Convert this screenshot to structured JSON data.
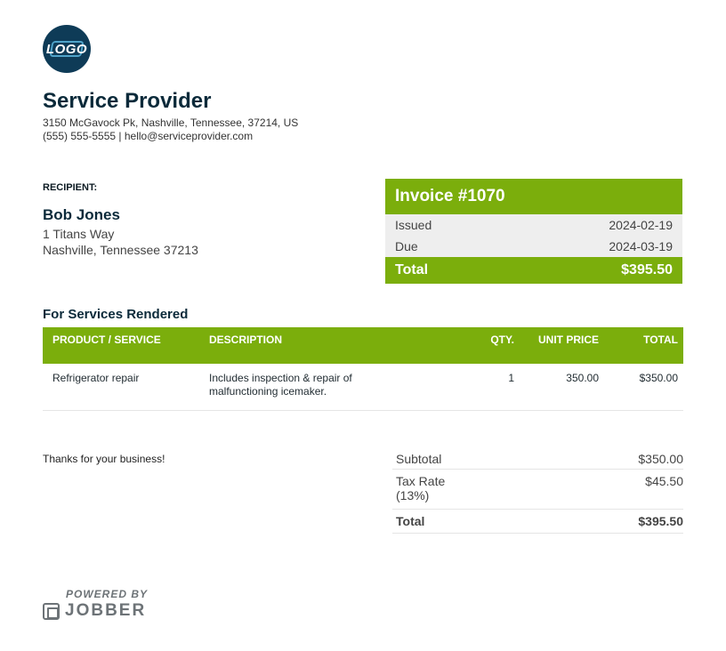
{
  "logo": {
    "text": "LOGO"
  },
  "company": {
    "name": "Service Provider",
    "address": "3150 McGavock Pk, Nashville, Tennessee, 37214, US",
    "contact": "(555) 555-5555 | hello@serviceprovider.com"
  },
  "recipient": {
    "label": "RECIPIENT:",
    "name": "Bob Jones",
    "address_line1": "1 Titans Way",
    "address_line2": "Nashville, Tennessee 37213"
  },
  "invoice": {
    "title": "Invoice #1070",
    "issued_label": "Issued",
    "issued_value": "2024-02-19",
    "due_label": "Due",
    "due_value": "2024-03-19",
    "total_label": "Total",
    "total_value": "$395.50"
  },
  "services": {
    "title": "For Services Rendered",
    "headers": {
      "product": "PRODUCT / SERVICE",
      "description": "DESCRIPTION",
      "qty": "QTY.",
      "unit_price": "UNIT PRICE",
      "total": "TOTAL"
    },
    "items": [
      {
        "product": "Refrigerator repair",
        "description": "Includes inspection & repair of malfunctioning icemaker.",
        "qty": "1",
        "unit_price": "350.00",
        "total": "$350.00"
      }
    ]
  },
  "footer_note": "Thanks for your business!",
  "summary": {
    "subtotal_label": "Subtotal",
    "subtotal_value": "$350.00",
    "tax_label": "Tax Rate (13%)",
    "tax_value": "$45.50",
    "total_label": "Total",
    "total_value": "$395.50"
  },
  "branding": {
    "powered_by": "POWERED BY",
    "name": "JOBBER"
  }
}
